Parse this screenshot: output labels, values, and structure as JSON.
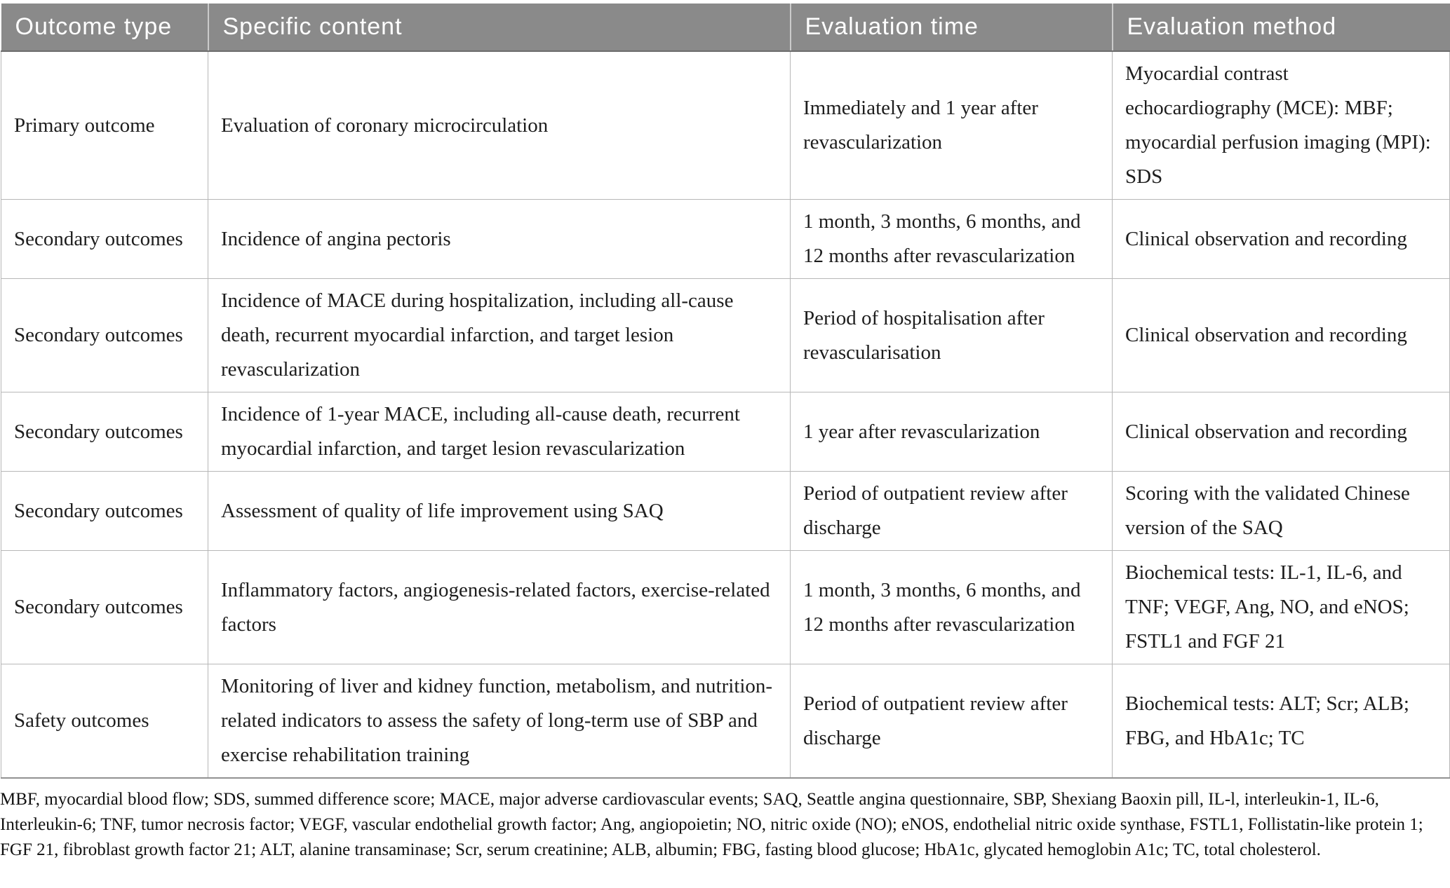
{
  "table": {
    "header": {
      "columns": [
        "Outcome type",
        "Specific content",
        "Evaluation time",
        "Evaluation method"
      ]
    },
    "rows": [
      {
        "outcome_type": "Primary outcome",
        "specific_content": "Evaluation of coronary microcirculation",
        "evaluation_time": "Immediately and 1 year after revascularization",
        "evaluation_method": "Myocardial contrast echocardiography (MCE): MBF; myocardial perfusion imaging (MPI): SDS"
      },
      {
        "outcome_type": "Secondary outcomes",
        "specific_content": "Incidence of angina pectoris",
        "evaluation_time": "1 month, 3 months, 6 months, and 12 months after revascularization",
        "evaluation_method": "Clinical observation and recording"
      },
      {
        "outcome_type": "Secondary outcomes",
        "specific_content": "Incidence of MACE during hospitalization, including all-cause death, recurrent myocardial infarction, and target lesion revascularization",
        "evaluation_time": "Period of hospitalisation after revascularisation",
        "evaluation_method": "Clinical observation and recording"
      },
      {
        "outcome_type": "Secondary outcomes",
        "specific_content": "Incidence of 1-year MACE, including all-cause death, recurrent myocardial infarction, and target lesion revascularization",
        "evaluation_time": "1 year after revascularization",
        "evaluation_method": "Clinical observation and recording"
      },
      {
        "outcome_type": "Secondary outcomes",
        "specific_content": "Assessment of quality of life improvement using SAQ",
        "evaluation_time": "Period of outpatient review after discharge",
        "evaluation_method": "Scoring with the validated Chinese version of the SAQ"
      },
      {
        "outcome_type": "Secondary outcomes",
        "specific_content": "Inflammatory factors, angiogenesis-related factors, exercise-related factors",
        "evaluation_time": "1 month, 3 months, 6 months, and 12 months after revascularization",
        "evaluation_method": "Biochemical tests: IL-1, IL-6, and TNF; VEGF, Ang, NO, and eNOS; FSTL1 and FGF 21"
      },
      {
        "outcome_type": "Safety outcomes",
        "specific_content": "Monitoring of liver and kidney function, metabolism, and nutrition-related indicators to assess the safety of long-term use of SBP and exercise rehabilitation training",
        "evaluation_time": "Period of outpatient review after discharge",
        "evaluation_method": "Biochemical tests: ALT; Scr; ALB; FBG, and HbA1c; TC"
      }
    ],
    "footnote": "MBF, myocardial blood flow; SDS, summed difference score; MACE, major adverse cardiovascular events; SAQ, Seattle angina questionnaire, SBP, Shexiang Baoxin pill, IL-l, interleukin-1, IL-6, Interleukin-6; TNF, tumor necrosis factor; VEGF, vascular endothelial growth factor; Ang, angiopoietin; NO, nitric oxide (NO); eNOS, endothelial nitric oxide synthase, FSTL1, Follistatin-like protein 1; FGF 21, fibroblast growth factor 21; ALT, alanine transaminase; Scr, serum creatinine; ALB, albumin; FBG, fasting blood glucose; HbA1c, glycated hemoglobin A1c; TC, total cholesterol."
  },
  "colors": {
    "header_bg": "#8a8a8a",
    "header_text": "#ffffff",
    "body_text": "#1d1d1d",
    "grid_line": "#b7b7b7"
  }
}
